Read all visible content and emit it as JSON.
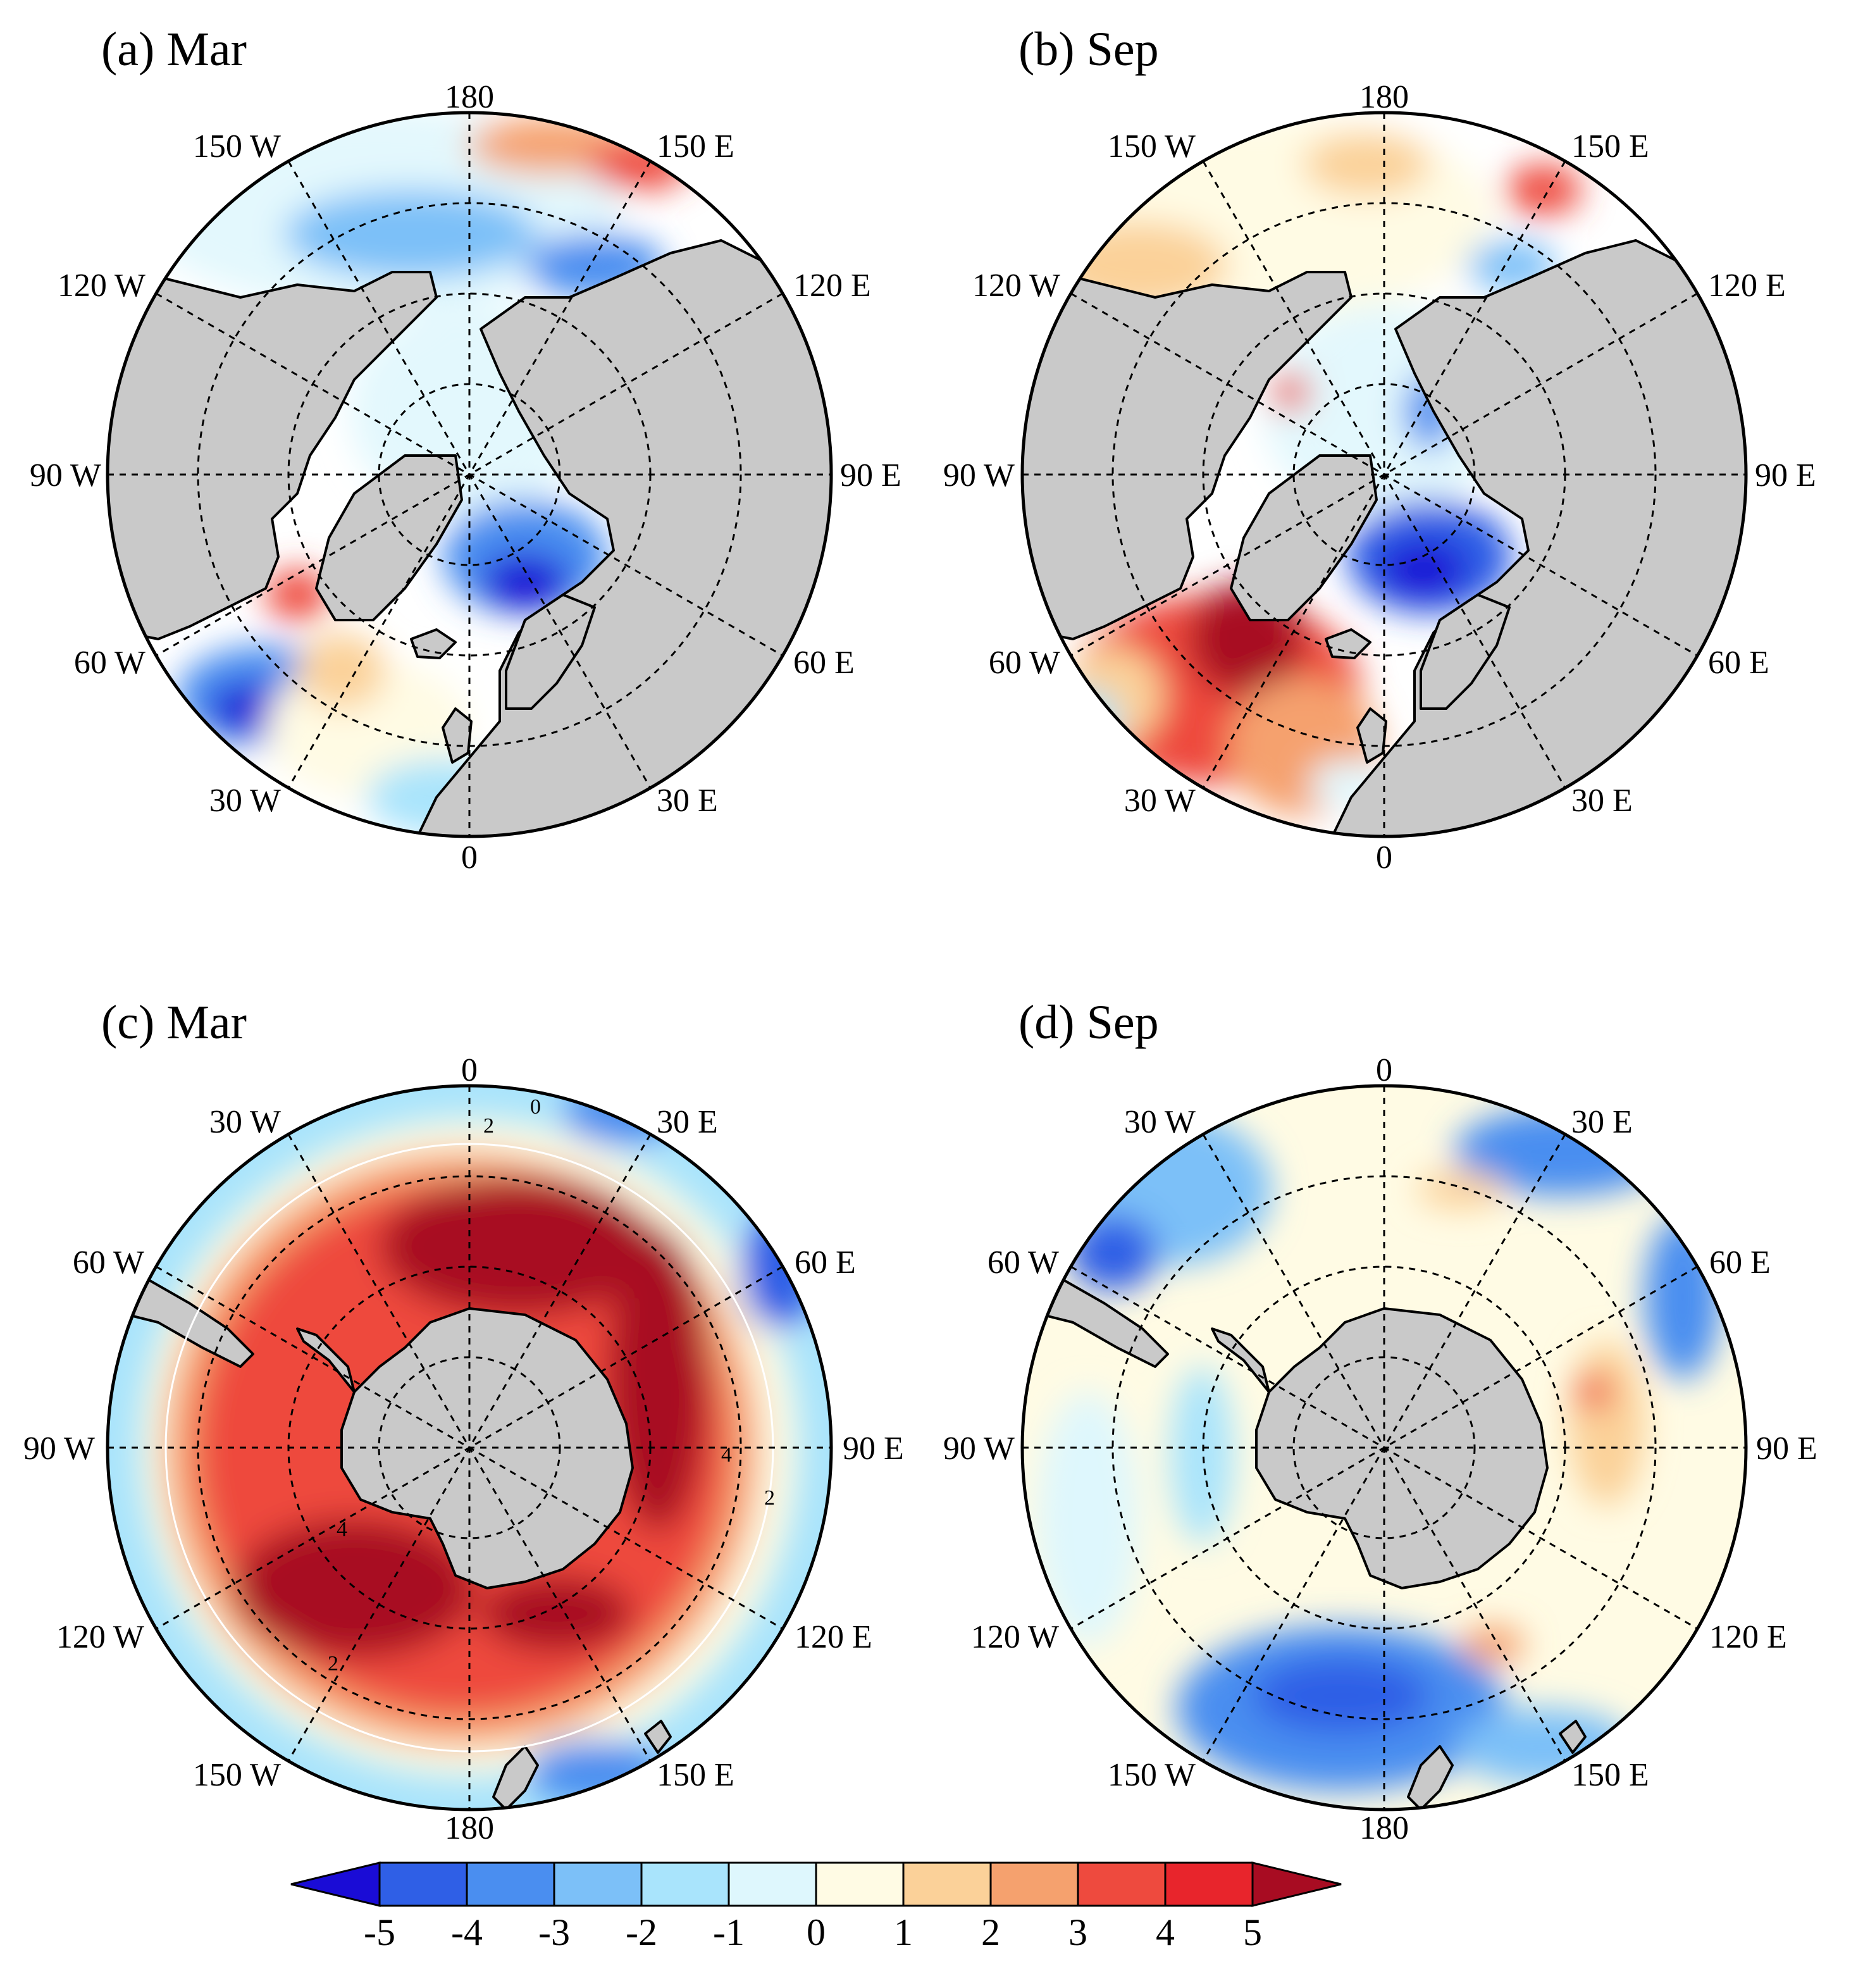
{
  "panels": [
    {
      "id": "a",
      "title": "(a) Mar",
      "hemisphere": "north",
      "lon_labels": {
        "top": "180",
        "bottom": "0",
        "left": "90 W",
        "right": "90 E",
        "upper_left": [
          "150 W",
          "120 W"
        ],
        "upper_right": [
          "150 E",
          "120 E"
        ],
        "lower_left": [
          "60 W",
          "30 W"
        ],
        "lower_right": [
          "60 E",
          "30 E"
        ]
      },
      "contour_labels": []
    },
    {
      "id": "b",
      "title": "(b) Sep",
      "hemisphere": "north",
      "lon_labels": {
        "top": "180",
        "bottom": "0",
        "left": "90 W",
        "right": "90 E",
        "upper_left": [
          "150 W",
          "120 W"
        ],
        "upper_right": [
          "150 E",
          "120 E"
        ],
        "lower_left": [
          "60 W",
          "30 W"
        ],
        "lower_right": [
          "60 E",
          "30 E"
        ]
      },
      "contour_labels": []
    },
    {
      "id": "c",
      "title": "(c) Mar",
      "hemisphere": "south",
      "lon_labels": {
        "top": "0",
        "bottom": "180",
        "left": "90 W",
        "right": "90 E",
        "upper_left": [
          "30 W",
          "60 W"
        ],
        "upper_right": [
          "30 E",
          "60 E"
        ],
        "lower_left": [
          "120 W",
          "150 W"
        ],
        "lower_right": [
          "120 E",
          "150 E"
        ]
      },
      "contour_labels": [
        "0",
        "2",
        "2",
        "4",
        "2",
        "4"
      ]
    },
    {
      "id": "d",
      "title": "(d) Sep",
      "hemisphere": "south",
      "lon_labels": {
        "top": "0",
        "bottom": "180",
        "left": "90 W",
        "right": "90 E",
        "upper_left": [
          "30 W",
          "60 W"
        ],
        "upper_right": [
          "30 E",
          "60 E"
        ],
        "lower_left": [
          "120 W",
          "150 W"
        ],
        "lower_right": [
          "120 E",
          "150 E"
        ]
      },
      "contour_labels": []
    }
  ],
  "colorbar": {
    "ticks": [
      "-5",
      "-4",
      "-3",
      "-2",
      "-1",
      "0",
      "1",
      "2",
      "3",
      "4",
      "5"
    ],
    "colors": [
      "#1a0cd6",
      "#2f5fe6",
      "#4a8ef0",
      "#7cc0f8",
      "#a9e4fc",
      "#def7fd",
      "#fffbe4",
      "#fbd199",
      "#f5a16e",
      "#ee4a3e",
      "#e8252c",
      "#a80c22"
    ]
  },
  "colors": {
    "land": "#c9c9c9",
    "coast": "#000000",
    "grid": "#000000"
  }
}
